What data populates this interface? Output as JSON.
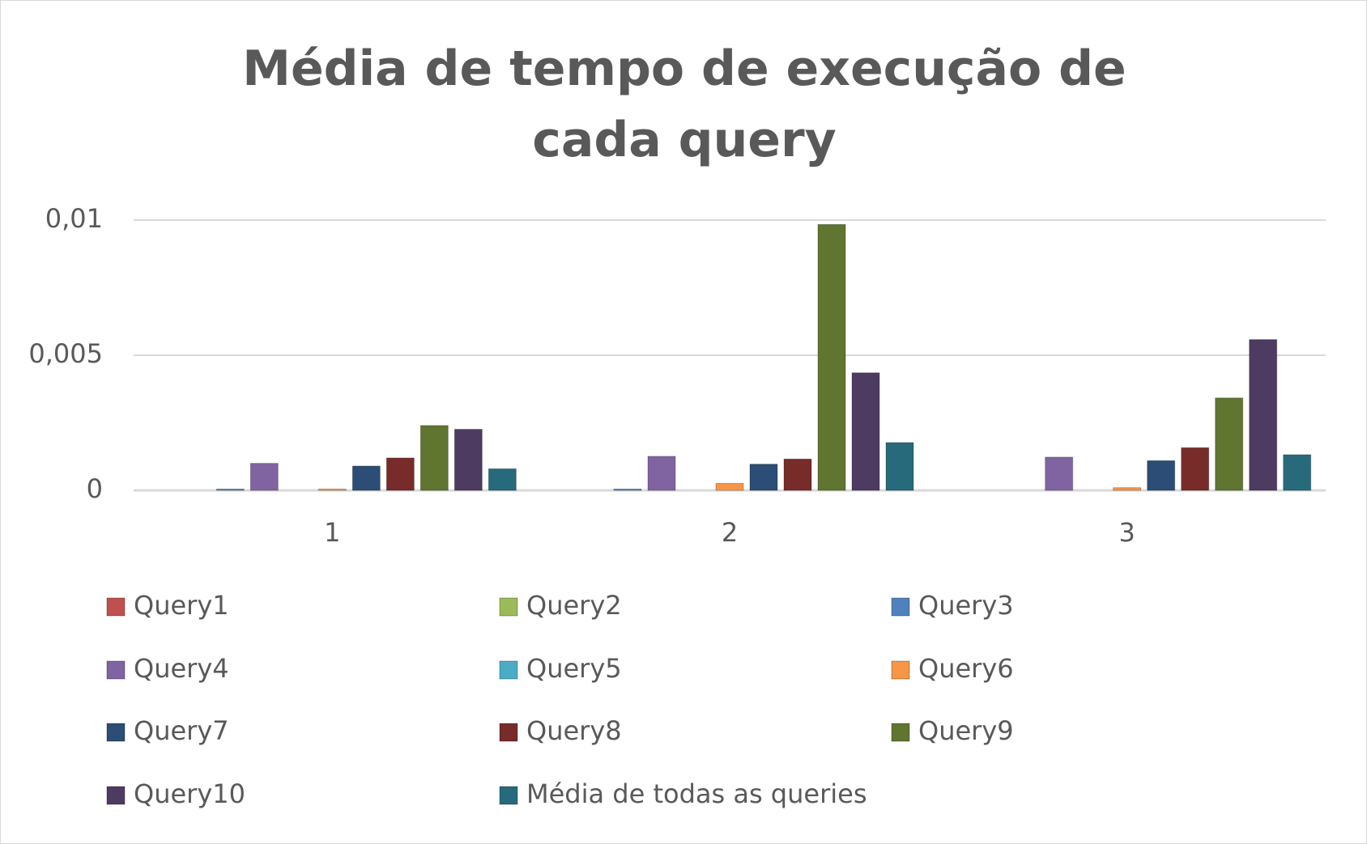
{
  "chart_data": {
    "type": "bar",
    "title": "Média de tempo de execução de cada query",
    "categories": [
      "1",
      "2",
      "3"
    ],
    "series": [
      {
        "name": "Query1",
        "color": "#c0504d",
        "values": [
          0,
          0,
          0
        ]
      },
      {
        "name": "Query2",
        "color": "#9bbb59",
        "values": [
          0,
          0,
          0
        ]
      },
      {
        "name": "Query3",
        "color": "#4f81bd",
        "values": [
          5e-05,
          5e-05,
          0
        ]
      },
      {
        "name": "Query4",
        "color": "#8064a2",
        "values": [
          0.001,
          0.00126,
          0.00123
        ]
      },
      {
        "name": "Query5",
        "color": "#4bacc6",
        "values": [
          0,
          0,
          0
        ]
      },
      {
        "name": "Query6",
        "color": "#f79646",
        "values": [
          5e-05,
          0.00026,
          0.0001
        ]
      },
      {
        "name": "Query7",
        "color": "#2c4d75",
        "values": [
          0.0009,
          0.00097,
          0.0011
        ]
      },
      {
        "name": "Query8",
        "color": "#772c2a",
        "values": [
          0.0012,
          0.00116,
          0.00158
        ]
      },
      {
        "name": "Query9",
        "color": "#5f7530",
        "values": [
          0.0024,
          0.00984,
          0.00342
        ]
      },
      {
        "name": "Query10",
        "color": "#4d3b62",
        "values": [
          0.00226,
          0.00435,
          0.00558
        ]
      },
      {
        "name": "Média de todas as queries",
        "color": "#276a7c",
        "values": [
          0.0008,
          0.00177,
          0.00132
        ]
      }
    ],
    "ylim": [
      0,
      0.01
    ],
    "yticks": [
      0,
      {
        "value": 0.005,
        "label": "0,005"
      },
      {
        "value": 0.01,
        "label": "0,01"
      }
    ],
    "grid": true,
    "legend": "bottom"
  }
}
